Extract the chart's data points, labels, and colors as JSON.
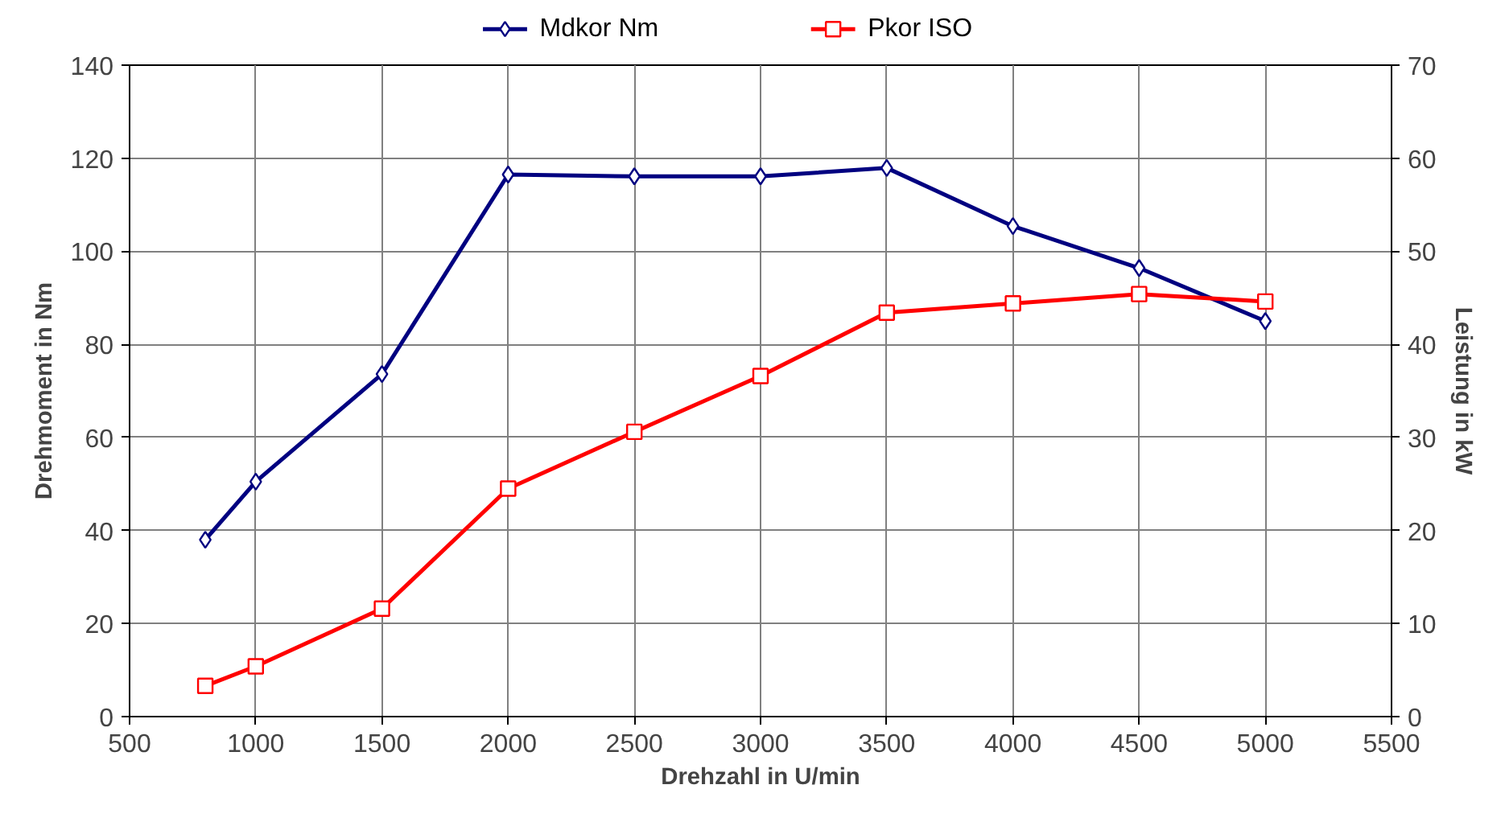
{
  "chart_data": {
    "type": "line",
    "xlabel": "Drehzahl in U/min",
    "ylabel": "Drehmoment in Nm",
    "y2label": "Leistung in kW",
    "x": [
      800,
      1000,
      1500,
      2000,
      2500,
      3000,
      3500,
      4000,
      4500,
      5000
    ],
    "series": [
      {
        "name": "Mdkor Nm",
        "color": "#000080",
        "marker": "diamond",
        "values": [
          38.0,
          50.5,
          73.6,
          116.5,
          116.1,
          116.1,
          117.9,
          105.4,
          96.4,
          85.0
        ]
      },
      {
        "name": "Pkor ISO",
        "color": "#ff0000",
        "marker": "square",
        "axis": "y2",
        "values": [
          3.3,
          5.4,
          11.6,
          24.5,
          30.6,
          36.6,
          43.4,
          44.4,
          45.4,
          44.6
        ]
      }
    ],
    "xlim": [
      500,
      5500
    ],
    "xticks": [
      500,
      1000,
      1500,
      2000,
      2500,
      3000,
      3500,
      4000,
      4500,
      5000,
      5500
    ],
    "ylim": [
      0,
      140
    ],
    "yticks": [
      0,
      20,
      40,
      60,
      80,
      100,
      120,
      140
    ],
    "y2lim": [
      0,
      70
    ],
    "y2ticks": [
      0,
      10,
      20,
      30,
      40,
      50,
      60,
      70
    ],
    "grid": true,
    "legend": "top",
    "line_style": "solid"
  }
}
